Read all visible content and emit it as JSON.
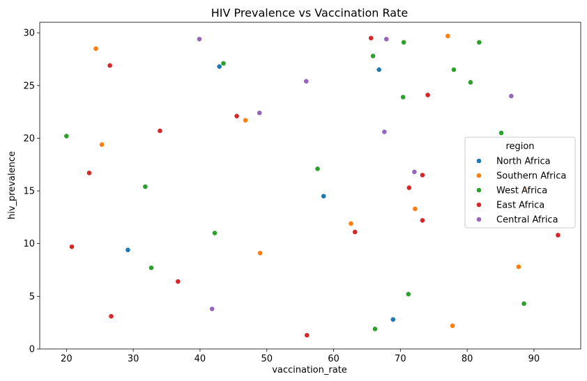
{
  "chart_data": {
    "type": "scatter",
    "title": "HIV Prevalence vs Vaccination Rate",
    "xlabel": "vaccination_rate",
    "ylabel": "hiv_prevalence",
    "xlim": [
      16,
      97
    ],
    "ylim": [
      0,
      31
    ],
    "xticks": [
      20,
      30,
      40,
      50,
      60,
      70,
      80,
      90
    ],
    "yticks": [
      0,
      5,
      10,
      15,
      20,
      25,
      30
    ],
    "grid": false,
    "legend": {
      "title": "region",
      "placement": "center-right"
    },
    "series": [
      {
        "name": "North Africa",
        "color": "#1f77b4",
        "points": [
          {
            "x": 42.9,
            "y": 26.8
          },
          {
            "x": 66.8,
            "y": 26.5
          },
          {
            "x": 58.5,
            "y": 14.5
          },
          {
            "x": 29.2,
            "y": 9.4
          },
          {
            "x": 68.9,
            "y": 2.8
          }
        ]
      },
      {
        "name": "Southern Africa",
        "color": "#ff7f0e",
        "points": [
          {
            "x": 24.4,
            "y": 28.5
          },
          {
            "x": 77.1,
            "y": 29.7
          },
          {
            "x": 46.8,
            "y": 21.7
          },
          {
            "x": 25.3,
            "y": 19.4
          },
          {
            "x": 72.2,
            "y": 13.3
          },
          {
            "x": 62.6,
            "y": 11.9
          },
          {
            "x": 49.0,
            "y": 9.1
          },
          {
            "x": 87.7,
            "y": 7.8
          },
          {
            "x": 77.8,
            "y": 2.2
          },
          {
            "x": 88.7,
            "y": 15.2
          }
        ]
      },
      {
        "name": "West Africa",
        "color": "#2ca02c",
        "points": [
          {
            "x": 43.5,
            "y": 27.1
          },
          {
            "x": 65.9,
            "y": 27.8
          },
          {
            "x": 70.5,
            "y": 29.1
          },
          {
            "x": 81.8,
            "y": 29.1
          },
          {
            "x": 78.0,
            "y": 26.5
          },
          {
            "x": 80.5,
            "y": 25.3
          },
          {
            "x": 70.4,
            "y": 23.9
          },
          {
            "x": 20.0,
            "y": 20.2
          },
          {
            "x": 85.1,
            "y": 20.5
          },
          {
            "x": 57.6,
            "y": 17.1
          },
          {
            "x": 31.8,
            "y": 15.4
          },
          {
            "x": 42.2,
            "y": 11.0
          },
          {
            "x": 32.7,
            "y": 7.7
          },
          {
            "x": 71.2,
            "y": 5.2
          },
          {
            "x": 88.5,
            "y": 4.3
          },
          {
            "x": 66.2,
            "y": 1.9
          }
        ]
      },
      {
        "name": "East Africa",
        "color": "#d62728",
        "points": [
          {
            "x": 65.6,
            "y": 29.5
          },
          {
            "x": 26.5,
            "y": 26.9
          },
          {
            "x": 74.1,
            "y": 24.1
          },
          {
            "x": 45.5,
            "y": 22.1
          },
          {
            "x": 34.0,
            "y": 20.7
          },
          {
            "x": 23.4,
            "y": 16.7
          },
          {
            "x": 73.3,
            "y": 16.5
          },
          {
            "x": 71.3,
            "y": 15.3
          },
          {
            "x": 73.3,
            "y": 12.2
          },
          {
            "x": 63.2,
            "y": 11.1
          },
          {
            "x": 93.6,
            "y": 10.8
          },
          {
            "x": 20.8,
            "y": 9.7
          },
          {
            "x": 36.7,
            "y": 6.4
          },
          {
            "x": 26.7,
            "y": 3.1
          },
          {
            "x": 56.0,
            "y": 1.3
          }
        ]
      },
      {
        "name": "Central Africa",
        "color": "#9467bd",
        "points": [
          {
            "x": 39.9,
            "y": 29.4
          },
          {
            "x": 67.9,
            "y": 29.4
          },
          {
            "x": 55.9,
            "y": 25.4
          },
          {
            "x": 86.6,
            "y": 24.0
          },
          {
            "x": 48.9,
            "y": 22.4
          },
          {
            "x": 67.6,
            "y": 20.6
          },
          {
            "x": 72.1,
            "y": 16.8
          },
          {
            "x": 41.8,
            "y": 3.8
          }
        ]
      }
    ]
  }
}
